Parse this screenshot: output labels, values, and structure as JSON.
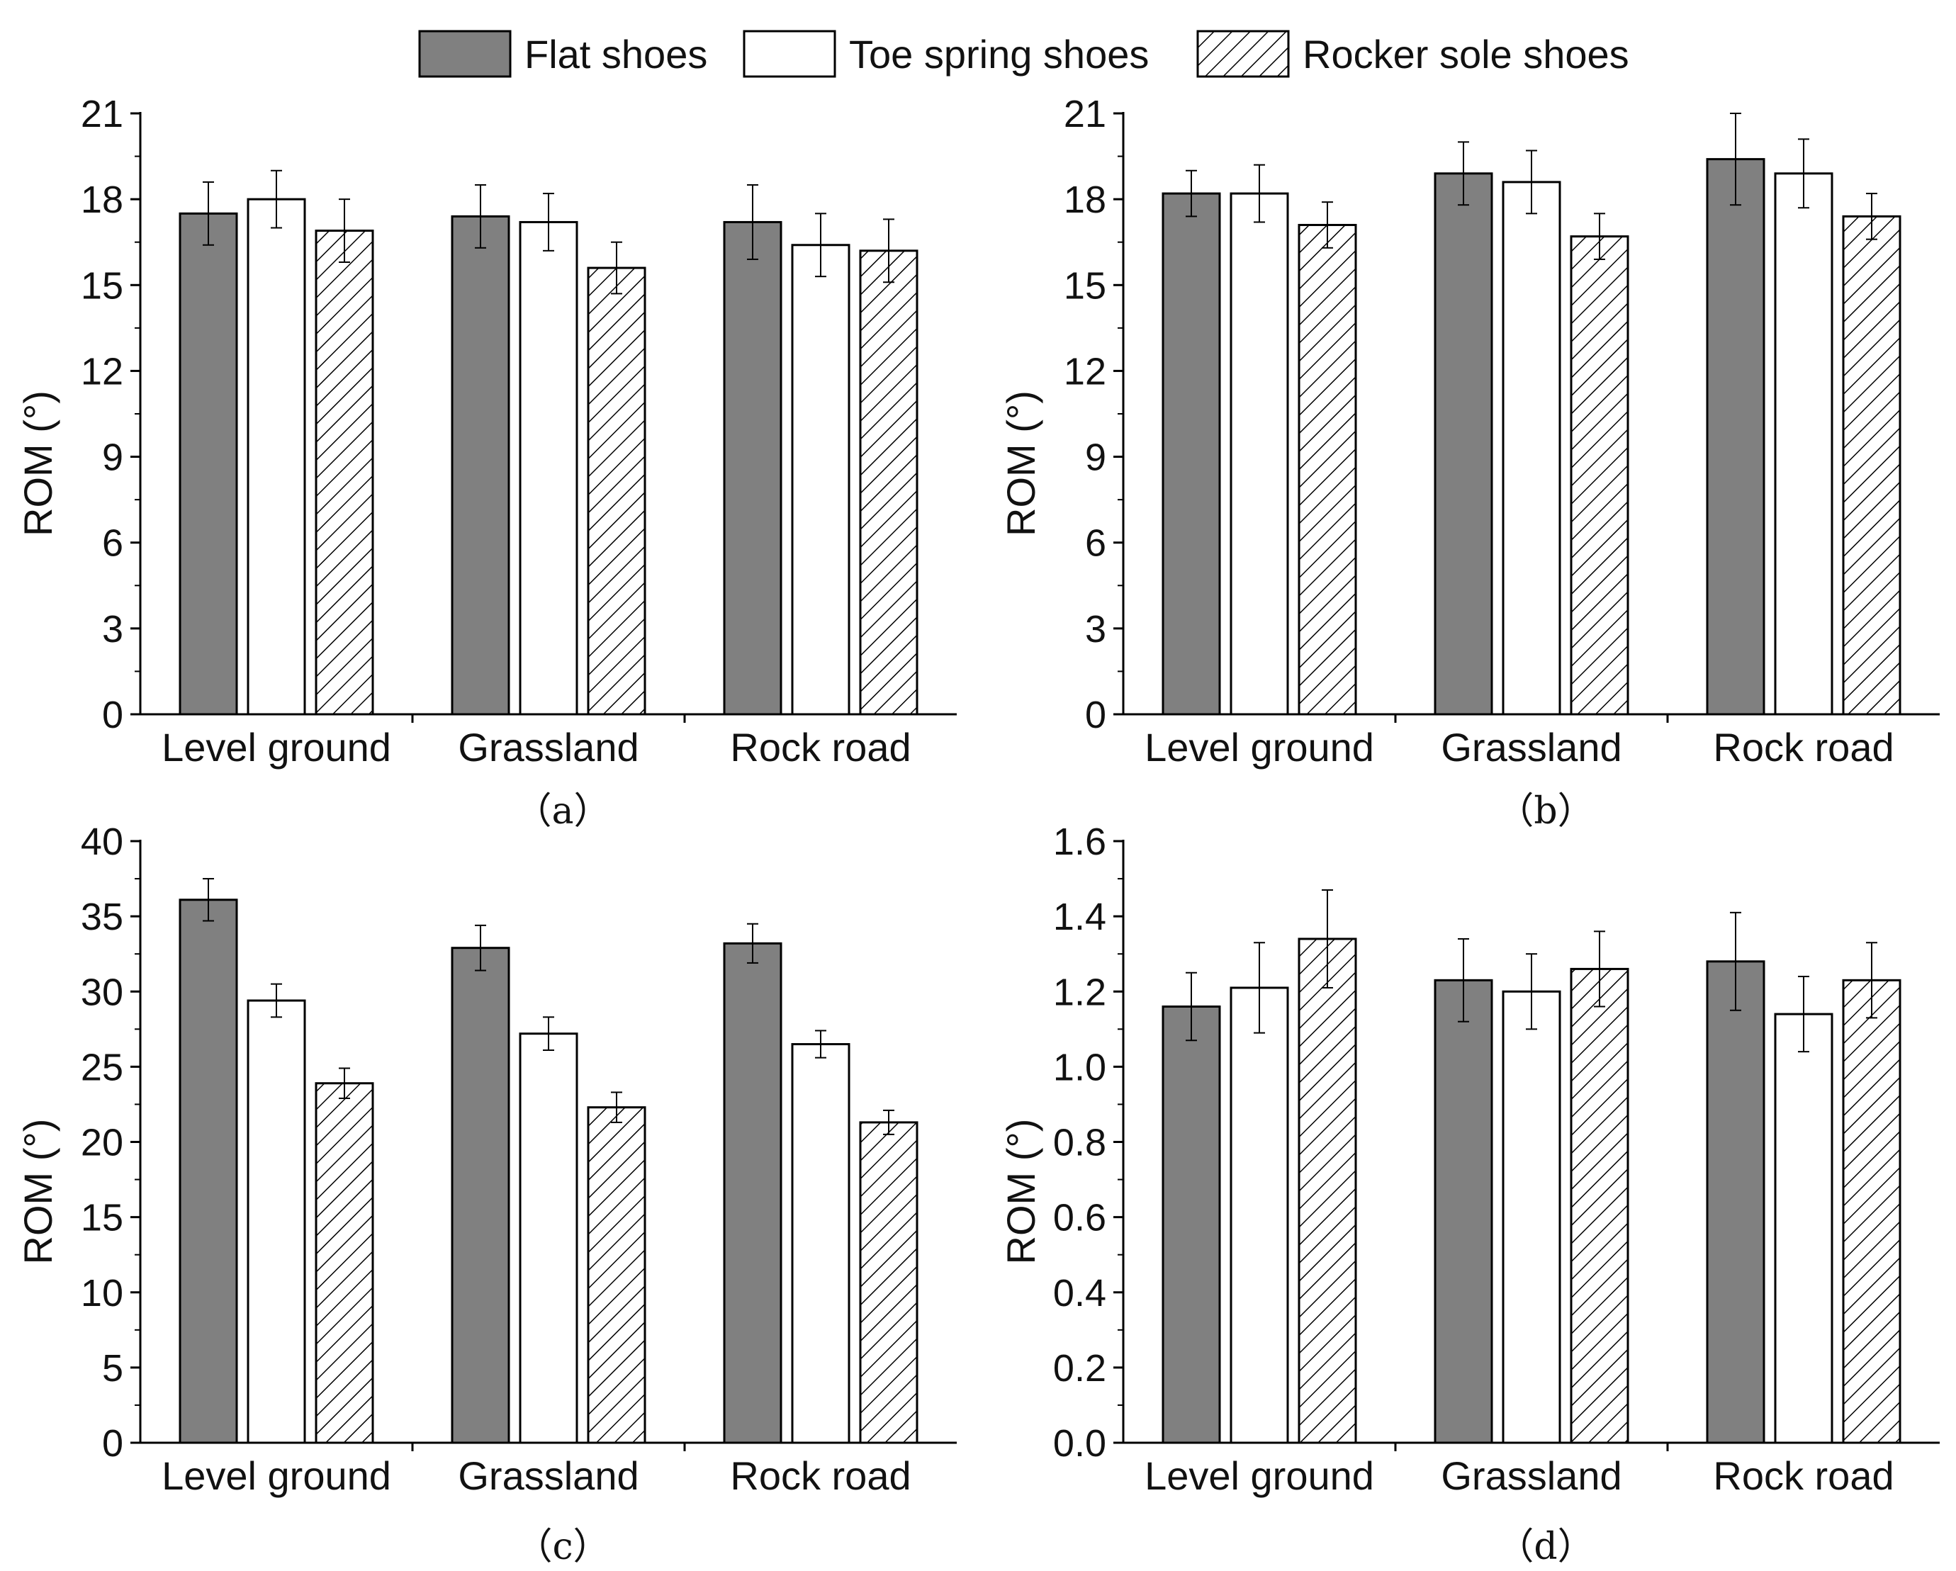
{
  "legend": {
    "items": [
      {
        "name": "Flat shoes",
        "style": "solid"
      },
      {
        "name": "Toe spring shoes",
        "style": "empty"
      },
      {
        "name": "Rocker sole shoes",
        "style": "hatched"
      }
    ]
  },
  "colors": {
    "dark_bar": "#808080",
    "edge": "#000000",
    "white": "#ffffff"
  },
  "chart_data": [
    {
      "type": "bar",
      "panel": "(a)",
      "caption": "（a）",
      "ylabel": "ROM (°)",
      "xlabel": "",
      "ylim": [
        0,
        21
      ],
      "yticks": [
        "0",
        "3",
        "6",
        "9",
        "12",
        "15",
        "18",
        "21"
      ],
      "categories": [
        "Level ground",
        "Grassland",
        "Rock road"
      ],
      "series": [
        {
          "name": "Flat shoes",
          "values": [
            17.5,
            17.4,
            17.2
          ],
          "errors": [
            1.1,
            1.1,
            1.3
          ]
        },
        {
          "name": "Toe spring shoes",
          "values": [
            18.0,
            17.2,
            16.4
          ],
          "errors": [
            1.0,
            1.0,
            1.1
          ]
        },
        {
          "name": "Rocker sole shoes",
          "values": [
            16.9,
            15.6,
            16.2
          ],
          "errors": [
            1.1,
            0.9,
            1.1
          ]
        }
      ]
    },
    {
      "type": "bar",
      "panel": "(b)",
      "caption": "（b）",
      "ylabel": "ROM (°)",
      "xlabel": "",
      "ylim": [
        0,
        21
      ],
      "yticks": [
        "0",
        "3",
        "6",
        "9",
        "12",
        "15",
        "18",
        "21"
      ],
      "categories": [
        "Level ground",
        "Grassland",
        "Rock road"
      ],
      "series": [
        {
          "name": "Flat shoes",
          "values": [
            18.2,
            18.9,
            19.4
          ],
          "errors": [
            0.8,
            1.1,
            1.6
          ]
        },
        {
          "name": "Toe spring shoes",
          "values": [
            18.2,
            18.6,
            18.9
          ],
          "errors": [
            1.0,
            1.1,
            1.2
          ]
        },
        {
          "name": "Rocker sole shoes",
          "values": [
            17.1,
            16.7,
            17.4
          ],
          "errors": [
            0.8,
            0.8,
            0.8
          ]
        }
      ]
    },
    {
      "type": "bar",
      "panel": "(c)",
      "caption": "（c）",
      "ylabel": "ROM (°)",
      "xlabel": "",
      "ylim": [
        0,
        40
      ],
      "yticks": [
        "0",
        "5",
        "10",
        "15",
        "20",
        "25",
        "30",
        "35",
        "40"
      ],
      "categories": [
        "Level ground",
        "Grassland",
        "Rock road"
      ],
      "series": [
        {
          "name": "Flat shoes",
          "values": [
            36.1,
            32.9,
            33.2
          ],
          "errors": [
            1.4,
            1.5,
            1.3
          ]
        },
        {
          "name": "Toe spring shoes",
          "values": [
            29.4,
            27.2,
            26.5
          ],
          "errors": [
            1.1,
            1.1,
            0.9
          ]
        },
        {
          "name": "Rocker sole shoes",
          "values": [
            23.9,
            22.3,
            21.3
          ],
          "errors": [
            1.0,
            1.0,
            0.8
          ]
        }
      ]
    },
    {
      "type": "bar",
      "panel": "(d)",
      "caption": "（d）",
      "ylabel": "ROM (°)",
      "xlabel": "",
      "ylim": [
        0,
        1.6
      ],
      "yticks": [
        "0.0",
        "0.2",
        "0.4",
        "0.6",
        "0.8",
        "1.0",
        "1.2",
        "1.4",
        "1.6"
      ],
      "categories": [
        "Level ground",
        "Grassland",
        "Rock road"
      ],
      "series": [
        {
          "name": "Flat shoes",
          "values": [
            1.16,
            1.23,
            1.28
          ],
          "errors": [
            0.09,
            0.11,
            0.13
          ]
        },
        {
          "name": "Toe spring shoes",
          "values": [
            1.21,
            1.2,
            1.14
          ],
          "errors": [
            0.12,
            0.1,
            0.1
          ]
        },
        {
          "name": "Rocker sole shoes",
          "values": [
            1.34,
            1.26,
            1.23
          ],
          "errors": [
            0.13,
            0.1,
            0.1
          ]
        }
      ]
    }
  ]
}
